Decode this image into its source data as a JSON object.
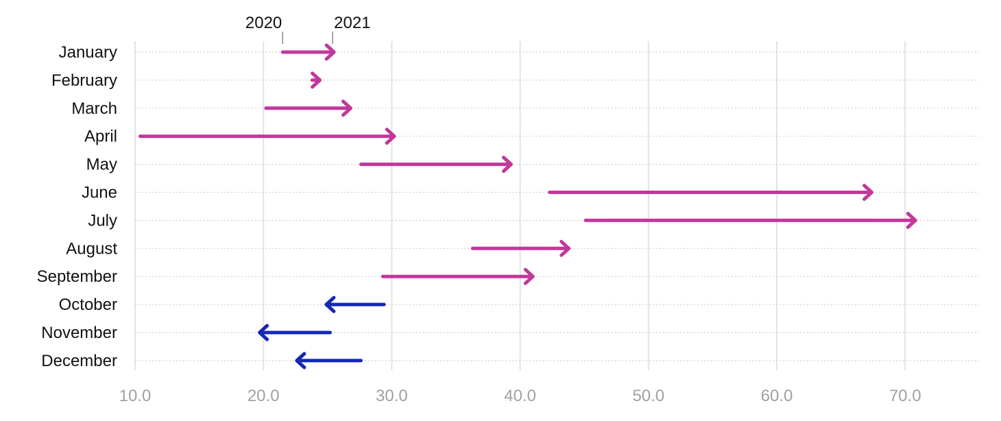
{
  "chart_data": {
    "type": "arrow",
    "title": "",
    "xlabel": "",
    "ylabel": "",
    "xlim": [
      10,
      76
    ],
    "x_ticks": [
      10,
      20,
      30,
      40,
      50,
      60,
      70
    ],
    "x_tick_labels": [
      "10.0",
      "20.0",
      "30.0",
      "40.0",
      "50.0",
      "60.0",
      "70.0"
    ],
    "grid": "vertical solid gridlines, horizontal dotted row lines",
    "legend": {
      "placement": "top",
      "start_label": "2020",
      "end_label": "2021"
    },
    "colors": {
      "increase": "#c2389a",
      "decrease": "#1428b4"
    },
    "categories": [
      "January",
      "February",
      "March",
      "April",
      "May",
      "June",
      "July",
      "August",
      "September",
      "October",
      "November",
      "December"
    ],
    "series": [
      {
        "name": "2020",
        "values": [
          21.5,
          23.8,
          20.2,
          10.4,
          27.6,
          42.3,
          45.1,
          36.3,
          29.3,
          29.4,
          25.2,
          27.6
        ]
      },
      {
        "name": "2021",
        "values": [
          25.5,
          24.4,
          26.8,
          30.2,
          39.3,
          67.4,
          70.8,
          43.8,
          41.0,
          24.9,
          19.7,
          22.6
        ]
      }
    ]
  }
}
